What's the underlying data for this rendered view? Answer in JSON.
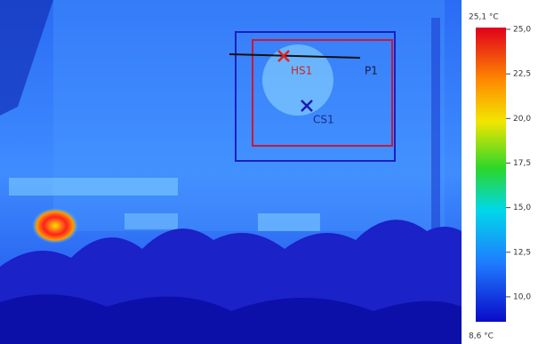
{
  "image": {
    "markers": [
      {
        "label": "HS1"
      },
      {
        "label": "CS1"
      }
    ],
    "profile_line": {
      "label": "P1"
    },
    "scale": {
      "max": {
        "value": 25.1,
        "label": "25,1 °C"
      },
      "min": {
        "value": 8.6,
        "label": "8,6 °C"
      },
      "ticks": [
        {
          "value": 25,
          "label": "25,0"
        },
        {
          "value": 22.5,
          "label": "22,5"
        },
        {
          "value": 20,
          "label": "20,0"
        },
        {
          "value": 17.5,
          "label": "17,5"
        },
        {
          "value": 15,
          "label": "15,0"
        },
        {
          "value": 12.5,
          "label": "12,5"
        },
        {
          "value": 10,
          "label": "10,0"
        }
      ]
    }
  }
}
